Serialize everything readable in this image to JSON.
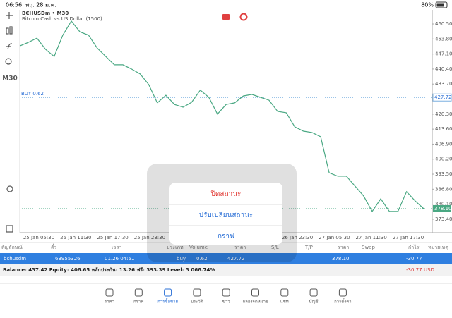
{
  "status_bar": {
    "time": "06:56",
    "date": "พฤ. 28 ม.ค.",
    "battery": "80%"
  },
  "toolbar": {
    "timeframe": "M30"
  },
  "chart_data": {
    "type": "line",
    "title": "BCHUSDm • M30",
    "subtitle": "Bitcoin Cash vs US Dollar (1500)",
    "color": "#4aa883",
    "values": [
      450.7,
      452.3,
      454.2,
      449.2,
      446.0,
      455.5,
      461.8,
      457.0,
      455.5,
      449.8,
      446.0,
      442.3,
      442.3,
      440.4,
      438.2,
      433.5,
      425.3,
      428.7,
      424.6,
      423.4,
      425.6,
      431.0,
      427.8,
      420.3,
      424.6,
      425.3,
      428.4,
      429.1,
      427.8,
      426.5,
      421.5,
      420.9,
      414.6,
      412.7,
      412.1,
      410.2,
      394.1,
      392.6,
      392.6,
      388.2,
      383.8,
      376.9,
      382.5,
      376.9,
      376.9,
      385.7,
      381.6,
      378.1
    ],
    "x_labels": [
      "25 Jan 05:30",
      "25 Jan 11:30",
      "25 Jan 17:30",
      "25 Jan 23:30",
      null,
      null,
      null,
      "26 Jan 23:30",
      "27 Jan 05:30",
      "27 Jan 11:30",
      "27 Jan 17:30"
    ],
    "ylim": [
      367.4,
      466.8
    ],
    "yticks": [
      {
        "value": 460.5,
        "label": "460.50"
      },
      {
        "value": 453.8,
        "label": "453.80"
      },
      {
        "value": 447.1,
        "label": "447.10"
      },
      {
        "value": 440.4,
        "label": "440.40"
      },
      {
        "value": 433.7,
        "label": "433.70"
      },
      {
        "value": 420.3,
        "label": "420.30"
      },
      {
        "value": 413.6,
        "label": "413.60"
      },
      {
        "value": 406.9,
        "label": "406.90"
      },
      {
        "value": 400.2,
        "label": "400.20"
      },
      {
        "value": 393.5,
        "label": "393.50"
      },
      {
        "value": 386.8,
        "label": "386.80"
      },
      {
        "value": 380.1,
        "label": "380.10"
      },
      {
        "value": 373.4,
        "label": "373.40"
      }
    ],
    "buy_line": {
      "label": "BUY 0.62",
      "value": 427.72,
      "value_label": "427.72"
    },
    "current_price": {
      "value": 378.1,
      "label": "378.10"
    }
  },
  "positions_table": {
    "header": [
      "สัญลักษณ์",
      "ตั๋ว",
      "เวลา",
      "ประเภท",
      "Volume",
      "ราคา",
      "S/L",
      "T/P",
      "ราคา",
      "Swap",
      "กำไร",
      "หมายเหตุ"
    ],
    "rows": [
      {
        "symbol": "bchusdm",
        "ticket": "63955326",
        "time": "01.26 04:51",
        "type": "buy",
        "volume": "0.62",
        "open_price": "427.72",
        "price": "378.10",
        "profit": "-30.77"
      }
    ]
  },
  "balance": {
    "text": "Balance: 437.42 Equity: 406.65 หลักประกัน: 13.26 ฟรี: 393.39 Level: 3 066.74%",
    "profit": "-30.77",
    "currency": "USD"
  },
  "popup": {
    "items": [
      "ปิดสถานะ",
      "ปรับเปลี่ยนสถานะ",
      "กราฟ"
    ]
  },
  "nav": [
    "ราคา",
    "กราฟ",
    "การซื้อขาย",
    "ประวัติ",
    "ข่าว",
    "กล่องจดหมาย",
    "แชท",
    "บัญชี",
    "การตั้งค่า"
  ]
}
